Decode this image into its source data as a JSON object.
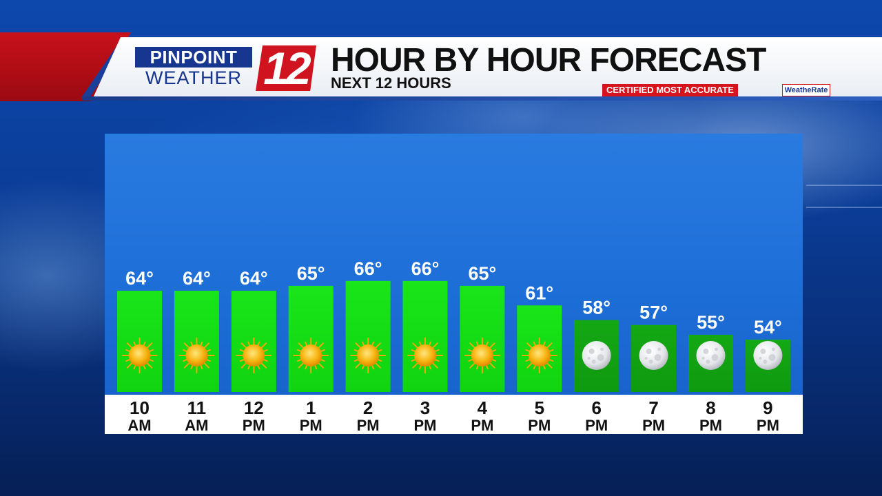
{
  "header": {
    "logo_top": "PINPOINT",
    "logo_bottom": "WEATHER",
    "logo_number": "12",
    "title": "HOUR BY HOUR FORECAST",
    "subtitle": "NEXT 12 HOURS",
    "certified": "CERTIFIED MOST ACCURATE",
    "rate_logo": "WeatheRate"
  },
  "colors": {
    "day_bar": "#14e014",
    "night_bar": "#12a012",
    "banner_red": "#c8111a",
    "logo_blue": "#16368f"
  },
  "chart_data": {
    "type": "bar",
    "title": "HOUR BY HOUR FORECAST",
    "subtitle": "NEXT 12 HOURS",
    "categories": [
      {
        "hour": "10",
        "period": "AM"
      },
      {
        "hour": "11",
        "period": "AM"
      },
      {
        "hour": "12",
        "period": "PM"
      },
      {
        "hour": "1",
        "period": "PM"
      },
      {
        "hour": "2",
        "period": "PM"
      },
      {
        "hour": "3",
        "period": "PM"
      },
      {
        "hour": "4",
        "period": "PM"
      },
      {
        "hour": "5",
        "period": "PM"
      },
      {
        "hour": "6",
        "period": "PM"
      },
      {
        "hour": "7",
        "period": "PM"
      },
      {
        "hour": "8",
        "period": "PM"
      },
      {
        "hour": "9",
        "period": "PM"
      }
    ],
    "values": [
      64,
      64,
      64,
      65,
      66,
      66,
      65,
      61,
      58,
      57,
      55,
      54
    ],
    "value_labels": [
      "64°",
      "64°",
      "64°",
      "65°",
      "66°",
      "66°",
      "65°",
      "61°",
      "58°",
      "57°",
      "55°",
      "54°"
    ],
    "icons": [
      "sun-icon",
      "sun-icon",
      "sun-icon",
      "sun-icon",
      "sun-icon",
      "sun-icon",
      "sun-icon",
      "sun-icon",
      "moon-icon",
      "moon-icon",
      "moon-icon",
      "moon-icon"
    ],
    "grid": false,
    "legend": "none"
  }
}
